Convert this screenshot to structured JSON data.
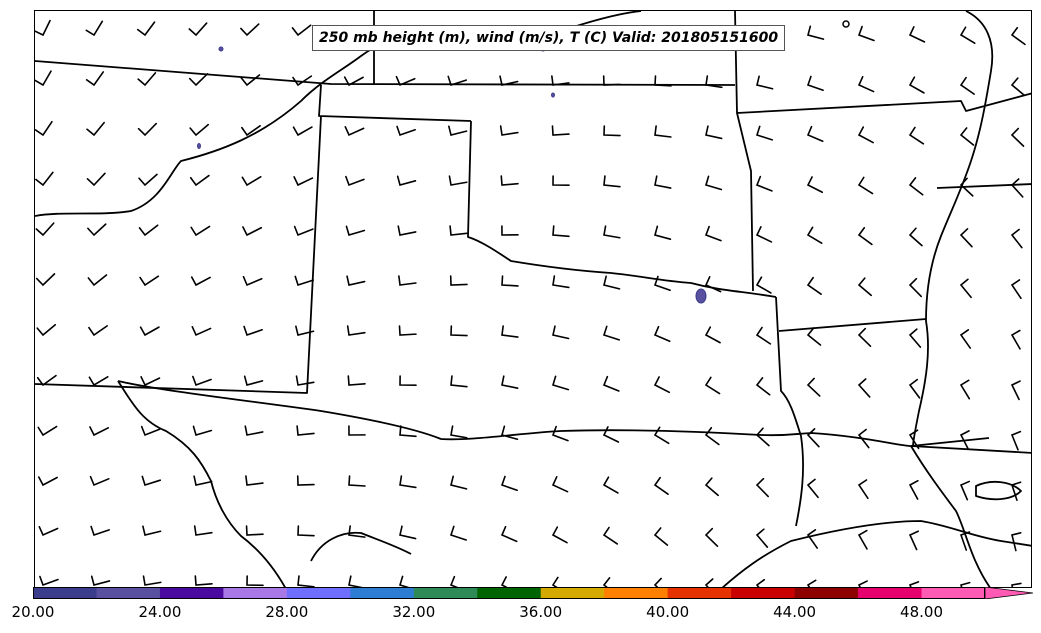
{
  "title": "250 mb height (m), wind (m/s), T (C) Valid: 201805151600",
  "colorbar": {
    "colors": [
      "#3c3c8c",
      "#5a50a0",
      "#4a0aa0",
      "#a878e6",
      "#6e6eff",
      "#2d7dd2",
      "#2e8b57",
      "#006400",
      "#d4aa00",
      "#ff8000",
      "#e63200",
      "#c80000",
      "#8c0000",
      "#e6006e",
      "#ff5ab4"
    ],
    "ticks": [
      "20.00",
      "24.00",
      "28.00",
      "32.00",
      "36.00",
      "40.00",
      "44.00",
      "48.00"
    ],
    "min": 20,
    "max": 52
  }
}
